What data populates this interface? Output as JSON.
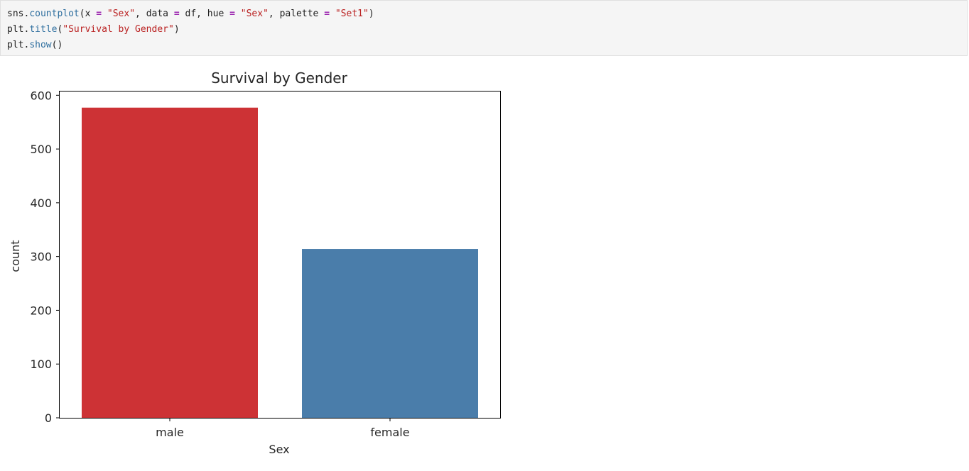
{
  "code": {
    "lines": [
      [
        {
          "t": "sns",
          "c": ""
        },
        {
          "t": ".",
          "c": ""
        },
        {
          "t": "countplot",
          "c": "fn"
        },
        {
          "t": "(x ",
          "c": ""
        },
        {
          "t": "=",
          "c": "op"
        },
        {
          "t": " ",
          "c": ""
        },
        {
          "t": "\"Sex\"",
          "c": "str"
        },
        {
          "t": ", data ",
          "c": ""
        },
        {
          "t": "=",
          "c": "op"
        },
        {
          "t": " df, hue ",
          "c": ""
        },
        {
          "t": "=",
          "c": "op"
        },
        {
          "t": " ",
          "c": ""
        },
        {
          "t": "\"Sex\"",
          "c": "str"
        },
        {
          "t": ", palette ",
          "c": ""
        },
        {
          "t": "=",
          "c": "op"
        },
        {
          "t": " ",
          "c": ""
        },
        {
          "t": "\"Set1\"",
          "c": "str"
        },
        {
          "t": ")",
          "c": ""
        }
      ],
      [
        {
          "t": "plt",
          "c": ""
        },
        {
          "t": ".",
          "c": ""
        },
        {
          "t": "title",
          "c": "fn"
        },
        {
          "t": "(",
          "c": ""
        },
        {
          "t": "\"Survival by Gender\"",
          "c": "str"
        },
        {
          "t": ")",
          "c": ""
        }
      ],
      [
        {
          "t": "plt",
          "c": ""
        },
        {
          "t": ".",
          "c": ""
        },
        {
          "t": "show",
          "c": "fn"
        },
        {
          "t": "()",
          "c": ""
        }
      ]
    ]
  },
  "chart_data": {
    "type": "bar",
    "title": "Survival by Gender",
    "xlabel": "Sex",
    "ylabel": "count",
    "categories": [
      "male",
      "female"
    ],
    "values": [
      577,
      314
    ],
    "colors": [
      "#cd3235",
      "#4a7daa"
    ],
    "ylim": [
      0,
      607
    ],
    "yticks": [
      0,
      100,
      200,
      300,
      400,
      500,
      600
    ],
    "grid": false
  }
}
